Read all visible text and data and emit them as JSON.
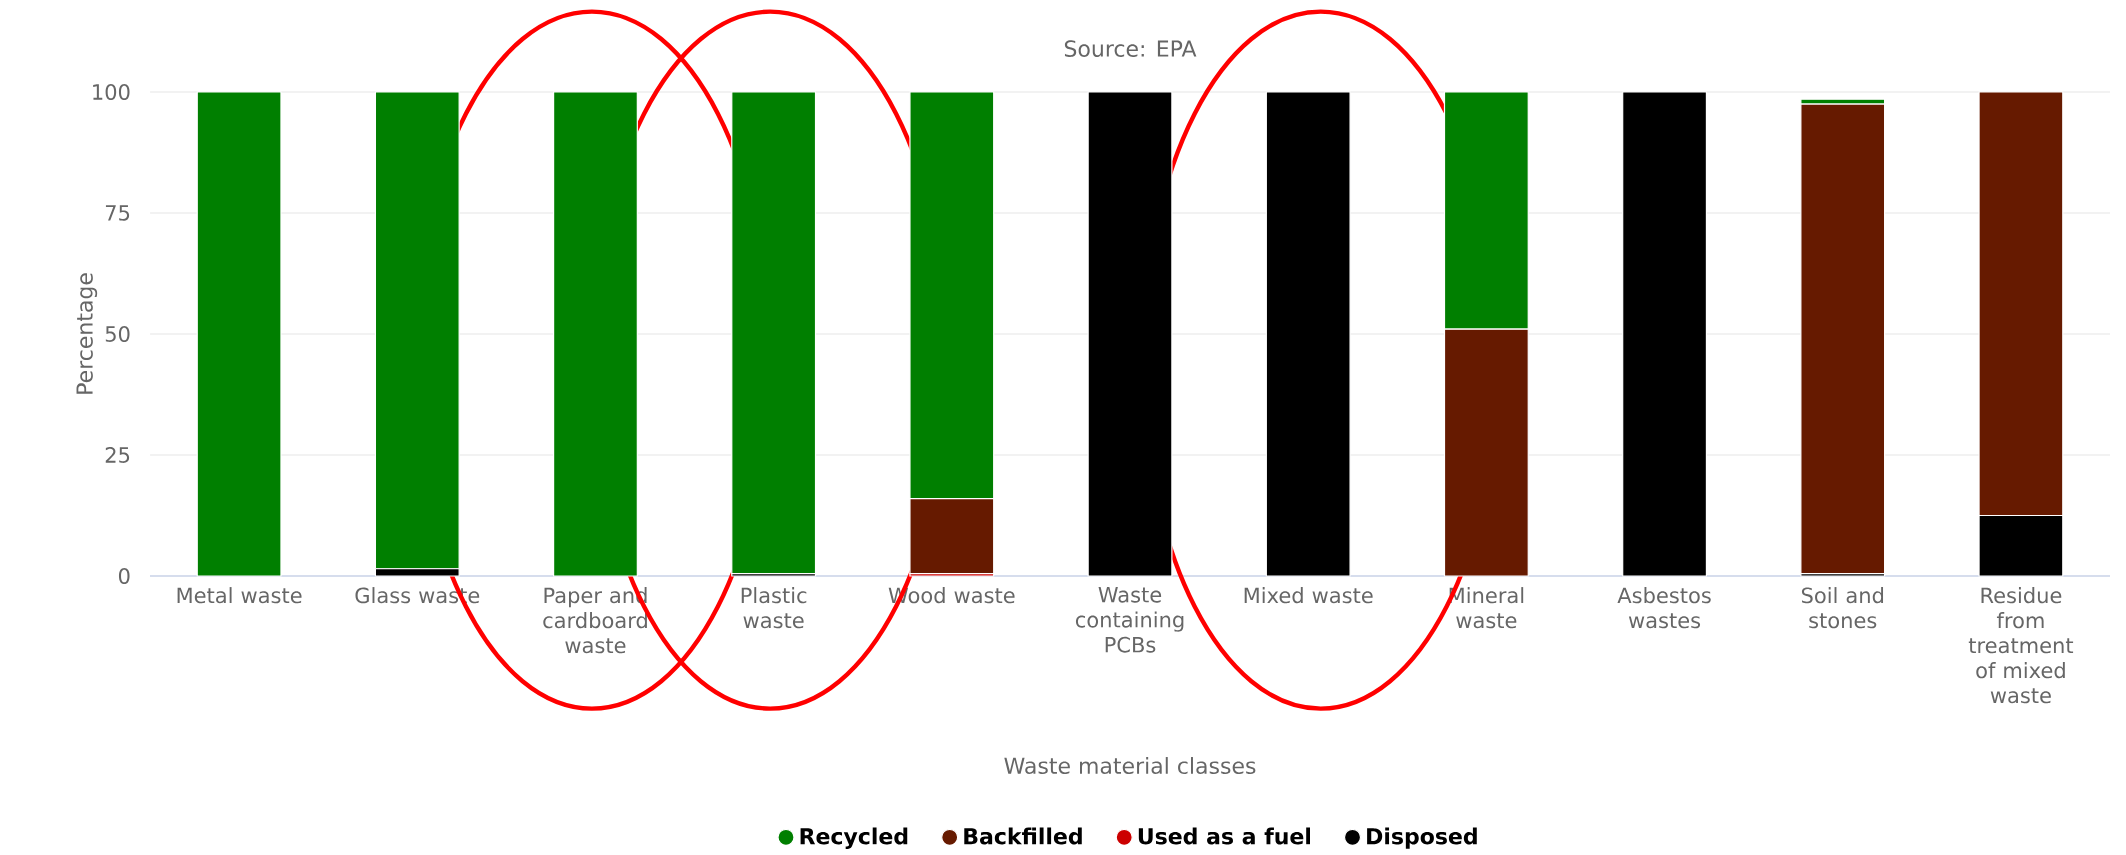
{
  "chart_data": {
    "type": "bar",
    "title": "Source: EPA",
    "xlabel": "Waste material classes",
    "ylabel": "Percentage",
    "categories": [
      "Metal waste",
      "Glass waste",
      "Paper and cardboard waste",
      "Plastic waste",
      "Wood waste",
      "Waste containing PCBs",
      "Mixed waste",
      "Mineral waste",
      "Asbestos wastes",
      "Soil and stones",
      "Residue from treatment of mixed waste"
    ],
    "stacked": true,
    "series": [
      {
        "name": "Disposed",
        "color": "#000000",
        "values": [
          0,
          1.5,
          0,
          0.5,
          0,
          100,
          100,
          0,
          100,
          0.5,
          12.5
        ]
      },
      {
        "name": "Used as a fuel",
        "color": "#cc0000",
        "values": [
          0,
          0,
          0,
          0,
          0.5,
          0,
          0,
          0,
          0,
          0,
          0
        ]
      },
      {
        "name": "Backfilled",
        "color": "#661a00",
        "values": [
          0,
          0,
          0,
          0,
          15.5,
          0,
          0,
          51,
          0,
          97,
          87.5
        ]
      },
      {
        "name": "Recycled",
        "color": "#007f00",
        "values": [
          100,
          98.5,
          100,
          99.5,
          84,
          0,
          0,
          49,
          0,
          1,
          0
        ]
      }
    ],
    "ylim": [
      0,
      100
    ],
    "yticks": [
      0,
      25,
      50,
      75,
      100
    ],
    "grid": "y",
    "legend": "bottom",
    "marker": "circle"
  }
}
